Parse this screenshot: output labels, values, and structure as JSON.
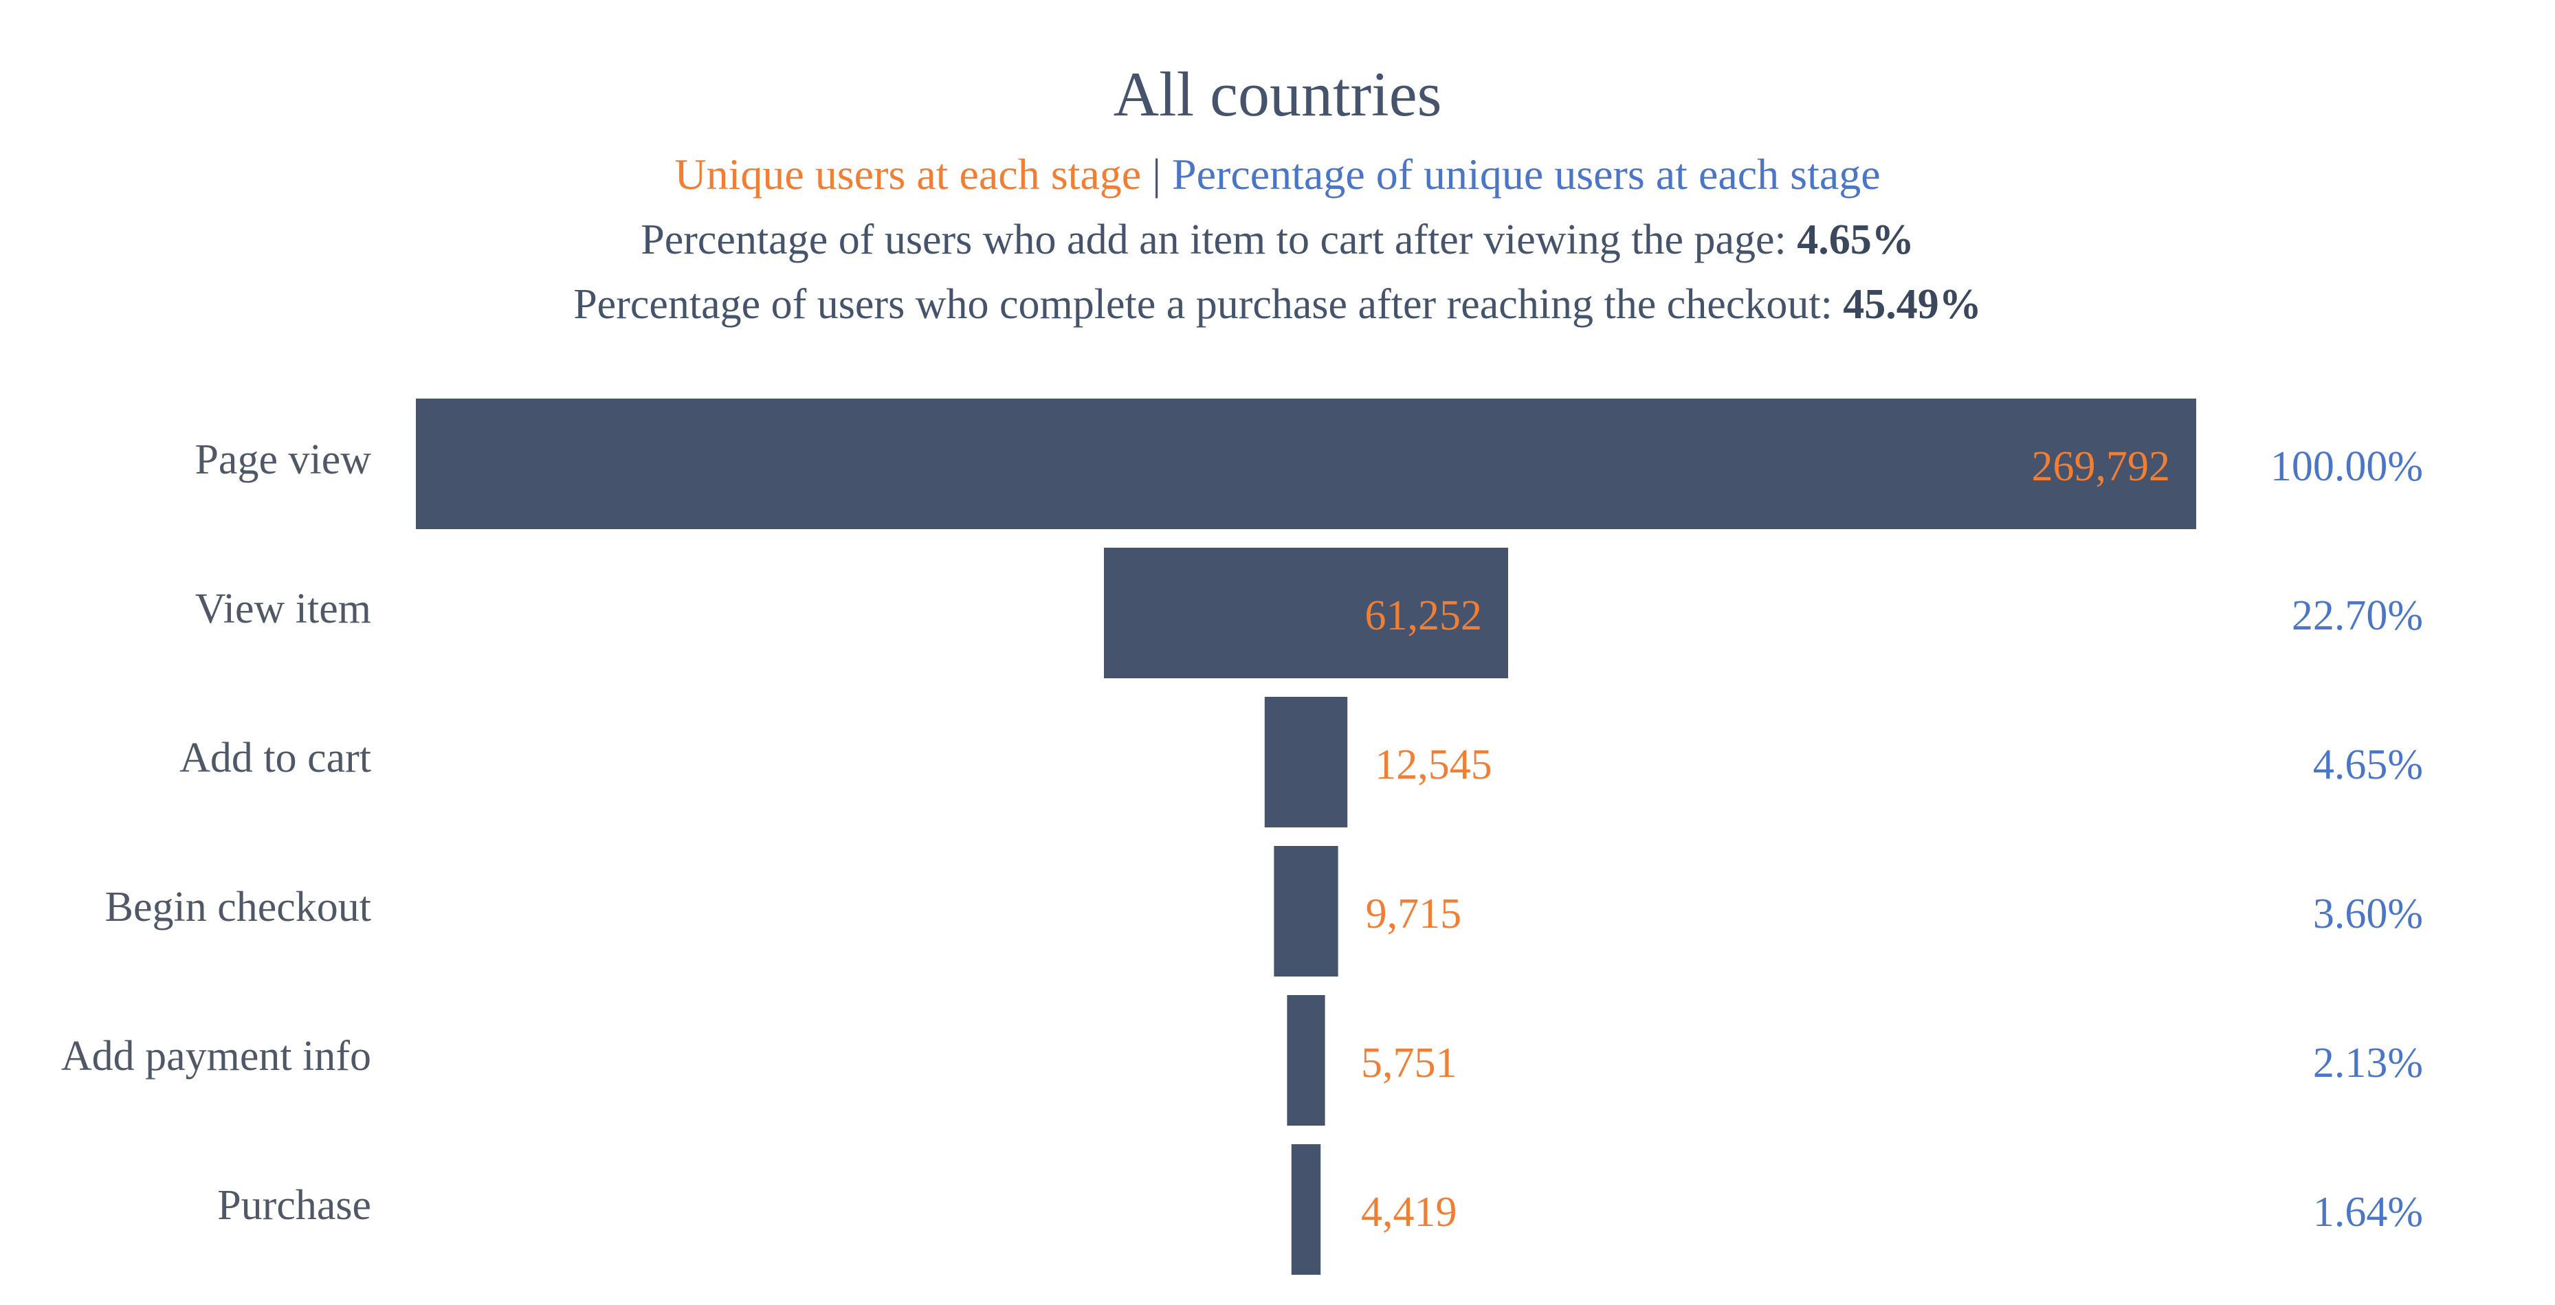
{
  "chart_data": {
    "type": "bar",
    "orientation": "horizontal-funnel",
    "title": "All countries",
    "subtitle": {
      "users_text": "Unique users at each stage",
      "separator": "|",
      "pct_text": "Percentage of unique users at each stage"
    },
    "metrics": [
      {
        "text": "Percentage of users who add an item to cart after viewing the page: ",
        "value": "4.65%"
      },
      {
        "text": "Percentage of users who complete a purchase after reaching the checkout: ",
        "value": "45.49%"
      }
    ],
    "categories": [
      "Page view",
      "View item",
      "Add to cart",
      "Begin checkout",
      "Add payment info",
      "Purchase"
    ],
    "values": [
      269792,
      61252,
      12545,
      9715,
      5751,
      4419
    ],
    "value_labels": [
      "269,792",
      "61,252",
      "12,545",
      "9,715",
      "5,751",
      "4,419"
    ],
    "percent_labels": [
      "100.00%",
      "22.70%",
      "4.65%",
      "3.60%",
      "2.13%",
      "1.64%"
    ],
    "xlabel": "",
    "ylabel": "",
    "grid": false,
    "legend": "none",
    "colors": {
      "bar": "#45546c",
      "users": "#f07f35",
      "percent": "#4b76c8",
      "title": "#45546c"
    }
  }
}
